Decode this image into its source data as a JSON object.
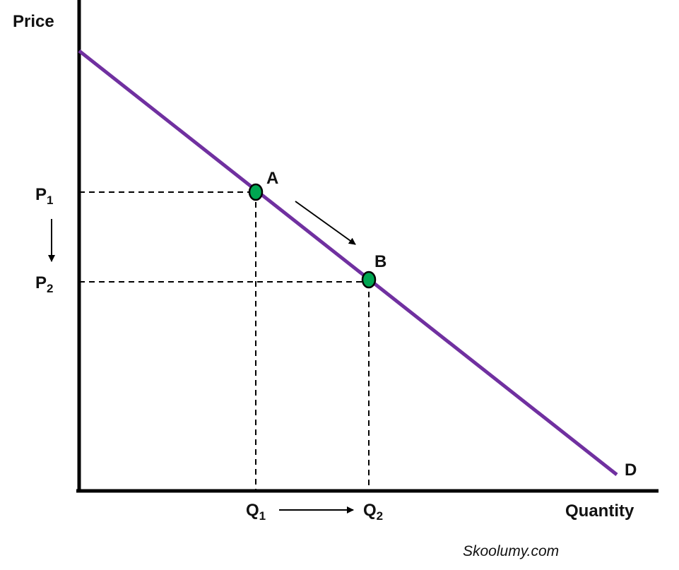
{
  "axes": {
    "y_label": "Price",
    "x_label": "Quantity"
  },
  "price_levels": [
    {
      "letter": "P",
      "subscript": "1"
    },
    {
      "letter": "P",
      "subscript": "2"
    }
  ],
  "quantity_levels": [
    {
      "letter": "Q",
      "subscript": "1"
    },
    {
      "letter": "Q",
      "subscript": "2"
    }
  ],
  "points": [
    {
      "label": "A"
    },
    {
      "label": "B"
    }
  ],
  "curve_label": "D",
  "watermark": "Skoolumy.com"
}
